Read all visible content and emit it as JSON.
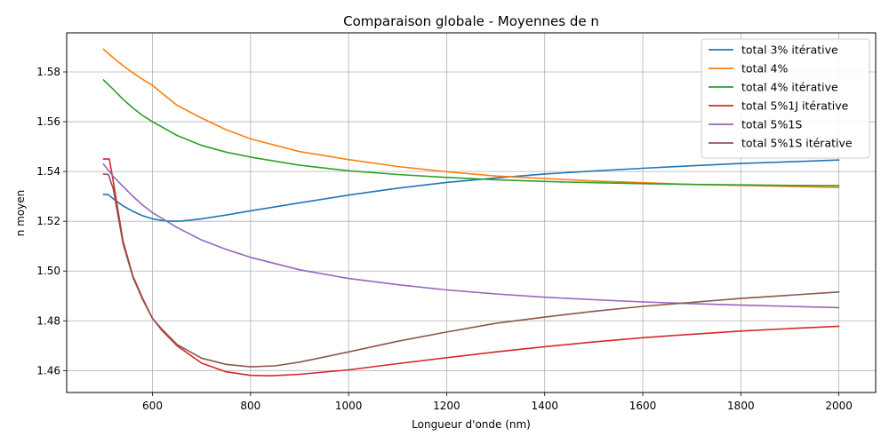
{
  "chart_data": {
    "type": "line",
    "title": "Comparaison globale - Moyennes de n",
    "xlabel": "Longueur d'onde (nm)",
    "ylabel": "n moyen",
    "xlim": [
      425,
      2075
    ],
    "ylim": [
      1.4512,
      1.5957
    ],
    "xticks": [
      600,
      800,
      1000,
      1200,
      1400,
      1600,
      1800,
      2000
    ],
    "yticks": [
      1.46,
      1.48,
      1.5,
      1.52,
      1.54,
      1.56,
      1.58
    ],
    "xtick_labels": [
      "600",
      "800",
      "1000",
      "1200",
      "1400",
      "1600",
      "1800",
      "2000"
    ],
    "ytick_labels": [
      "1.46",
      "1.48",
      "1.50",
      "1.52",
      "1.54",
      "1.56",
      "1.58"
    ],
    "grid": true,
    "legend": "top-right",
    "series": [
      {
        "name": "total 3% itérative",
        "color": "#1f77b4",
        "x": [
          500,
          510,
          520,
          540,
          560,
          580,
          600,
          620,
          640,
          660,
          700,
          750,
          800,
          900,
          1000,
          1100,
          1200,
          1300,
          1400,
          1500,
          1600,
          1700,
          1800,
          1900,
          2000
        ],
        "y": [
          1.5308,
          1.5307,
          1.529,
          1.5262,
          1.524,
          1.5222,
          1.521,
          1.5203,
          1.52,
          1.5201,
          1.521,
          1.5225,
          1.5242,
          1.5274,
          1.5305,
          1.5333,
          1.5356,
          1.5374,
          1.539,
          1.5402,
          1.5413,
          1.5423,
          1.5432,
          1.5439,
          1.5446
        ]
      },
      {
        "name": "total 4%",
        "color": "#ff7f0e",
        "x": [
          500,
          520,
          540,
          560,
          580,
          600,
          650,
          700,
          750,
          800,
          900,
          1000,
          1100,
          1200,
          1300,
          1400,
          1500,
          1600,
          1700,
          1800,
          1900,
          2000
        ],
        "y": [
          1.5891,
          1.5857,
          1.5825,
          1.5796,
          1.577,
          1.5746,
          1.5666,
          1.5615,
          1.5568,
          1.5531,
          1.548,
          1.5448,
          1.542,
          1.5399,
          1.5382,
          1.5372,
          1.5362,
          1.5355,
          1.5348,
          1.5344,
          1.534,
          1.5336
        ]
      },
      {
        "name": "total 4% itérative",
        "color": "#2ca02c",
        "x": [
          500,
          520,
          540,
          560,
          580,
          600,
          650,
          700,
          750,
          800,
          900,
          1000,
          1100,
          1200,
          1300,
          1400,
          1500,
          1600,
          1700,
          1800,
          1900,
          2000
        ],
        "y": [
          1.5768,
          1.573,
          1.569,
          1.5655,
          1.5625,
          1.56,
          1.5545,
          1.5505,
          1.5478,
          1.5458,
          1.5425,
          1.5403,
          1.5388,
          1.5376,
          1.5367,
          1.536,
          1.5355,
          1.5351,
          1.5348,
          1.5346,
          1.5344,
          1.5343
        ]
      },
      {
        "name": "total 5%1J itérative",
        "color": "#d62728",
        "x": [
          500,
          512,
          520,
          540,
          560,
          580,
          600,
          620,
          650,
          700,
          750,
          800,
          840,
          900,
          1000,
          1100,
          1200,
          1300,
          1400,
          1500,
          1600,
          1700,
          1800,
          1900,
          2000
        ],
        "y": [
          1.545,
          1.545,
          1.536,
          1.512,
          1.498,
          1.489,
          1.481,
          1.476,
          1.47,
          1.463,
          1.4595,
          1.4581,
          1.4579,
          1.4585,
          1.4603,
          1.4628,
          1.4652,
          1.4675,
          1.4696,
          1.4715,
          1.4732,
          1.4746,
          1.4759,
          1.4769,
          1.4778
        ]
      },
      {
        "name": "total 5%1S",
        "color": "#9467bd",
        "x": [
          500,
          520,
          540,
          560,
          580,
          600,
          650,
          700,
          750,
          800,
          900,
          1000,
          1100,
          1200,
          1300,
          1400,
          1500,
          1600,
          1700,
          1800,
          1900,
          2000
        ],
        "y": [
          1.543,
          1.538,
          1.534,
          1.53,
          1.5265,
          1.5235,
          1.5175,
          1.5125,
          1.5087,
          1.5055,
          1.5005,
          1.497,
          1.4945,
          1.4924,
          1.4908,
          1.4895,
          1.4885,
          1.4876,
          1.4869,
          1.4863,
          1.4858,
          1.4853
        ]
      },
      {
        "name": "total 5%1S itérative",
        "color": "#8c564b",
        "x": [
          500,
          510,
          520,
          540,
          560,
          580,
          600,
          620,
          650,
          700,
          750,
          800,
          850,
          900,
          1000,
          1100,
          1200,
          1300,
          1400,
          1500,
          1600,
          1700,
          1800,
          1900,
          2000
        ],
        "y": [
          1.539,
          1.5388,
          1.533,
          1.511,
          1.4975,
          1.4885,
          1.481,
          1.4765,
          1.4705,
          1.465,
          1.4625,
          1.4615,
          1.4619,
          1.4634,
          1.4675,
          1.4718,
          1.4755,
          1.479,
          1.4815,
          1.4838,
          1.4858,
          1.4874,
          1.489,
          1.4903,
          1.4916
        ]
      }
    ]
  }
}
